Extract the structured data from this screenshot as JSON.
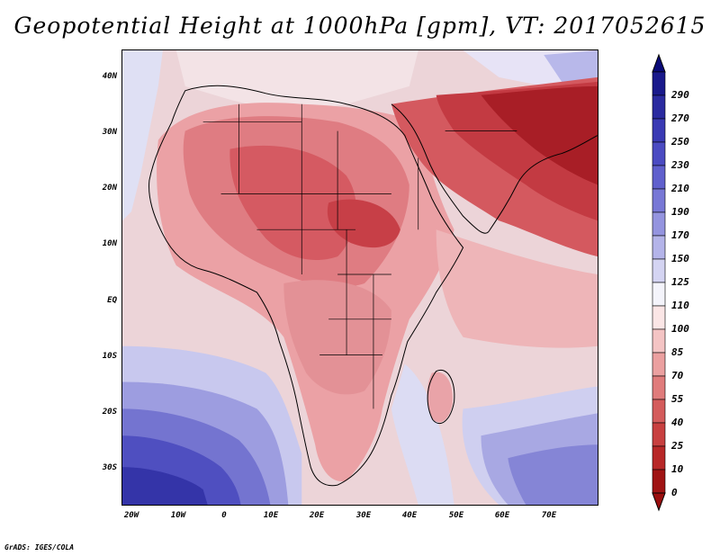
{
  "title": "Geopotential Height at 1000hPa [gpm], VT: 2017052615",
  "lat_labels": [
    "40N",
    "30N",
    "20N",
    "10N",
    "EQ",
    "10S",
    "20S",
    "30S"
  ],
  "lon_labels": [
    "20W",
    "10W",
    "0",
    "10E",
    "20E",
    "30E",
    "40E",
    "50E",
    "60E",
    "70E"
  ],
  "colorbar": {
    "levels": [
      "290",
      "270",
      "250",
      "230",
      "210",
      "190",
      "170",
      "150",
      "125",
      "110",
      "100",
      "85",
      "70",
      "55",
      "40",
      "25",
      "10",
      "0"
    ],
    "colors": [
      "#1a1a8c",
      "#2b2ba0",
      "#3a3ab4",
      "#4b4bc2",
      "#6060cd",
      "#7878d6",
      "#9494df",
      "#b4b4e9",
      "#d4d4f2",
      "#f4f4fb",
      "#fbe6e6",
      "#f4c4c4",
      "#eba0a0",
      "#e07c7c",
      "#d45c5c",
      "#c84040",
      "#b82828",
      "#a01414"
    ],
    "top_color": "#0a0a78",
    "bottom_color": "#9a0e0e"
  },
  "credit": "GrADS: IGES/COLA"
}
